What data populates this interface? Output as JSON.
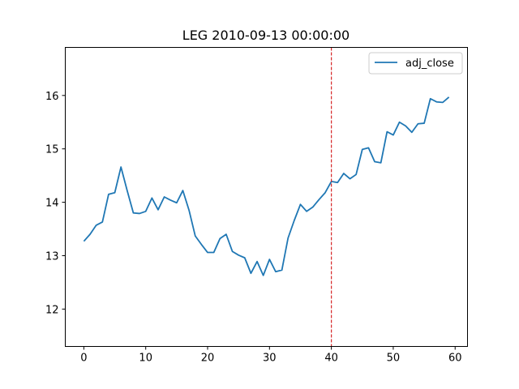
{
  "chart_data": {
    "type": "line",
    "title": "LEG 2010-09-13 00:00:00",
    "xlabel": "",
    "ylabel": "",
    "xlim": [
      -3,
      62
    ],
    "ylim": [
      11.3,
      16.9
    ],
    "x_ticks": [
      0,
      10,
      20,
      30,
      40,
      50,
      60
    ],
    "y_ticks": [
      12,
      13,
      14,
      15,
      16
    ],
    "grid": false,
    "legend_position": "top-right",
    "vline": {
      "x": 40,
      "color": "#d62728",
      "style": "dashed"
    },
    "series": [
      {
        "name": "adj_close",
        "color": "#1f77b4",
        "x": [
          0,
          1,
          2,
          3,
          4,
          5,
          6,
          7,
          8,
          9,
          10,
          11,
          12,
          13,
          14,
          15,
          16,
          17,
          18,
          19,
          20,
          21,
          22,
          23,
          24,
          25,
          26,
          27,
          28,
          29,
          30,
          31,
          32,
          33,
          34,
          35,
          36,
          37,
          38,
          39,
          40,
          41,
          42,
          43,
          44,
          45,
          46,
          47,
          48,
          49,
          50,
          51,
          52,
          53,
          54,
          55,
          56,
          57,
          58,
          59
        ],
        "values": [
          13.27,
          13.4,
          13.57,
          13.63,
          14.15,
          14.18,
          14.66,
          14.22,
          13.8,
          13.79,
          13.83,
          14.08,
          13.86,
          14.1,
          14.04,
          13.99,
          14.22,
          13.85,
          13.37,
          13.21,
          13.06,
          13.06,
          13.32,
          13.4,
          13.08,
          13.01,
          12.96,
          12.67,
          12.89,
          12.63,
          12.93,
          12.7,
          12.73,
          13.33,
          13.66,
          13.96,
          13.83,
          13.91,
          14.05,
          14.18,
          14.39,
          14.37,
          14.54,
          14.44,
          14.52,
          14.99,
          15.02,
          14.76,
          14.74,
          15.32,
          15.26,
          15.5,
          15.43,
          15.31,
          15.47,
          15.48,
          15.94,
          15.88,
          15.87,
          15.97
        ]
      }
    ]
  }
}
